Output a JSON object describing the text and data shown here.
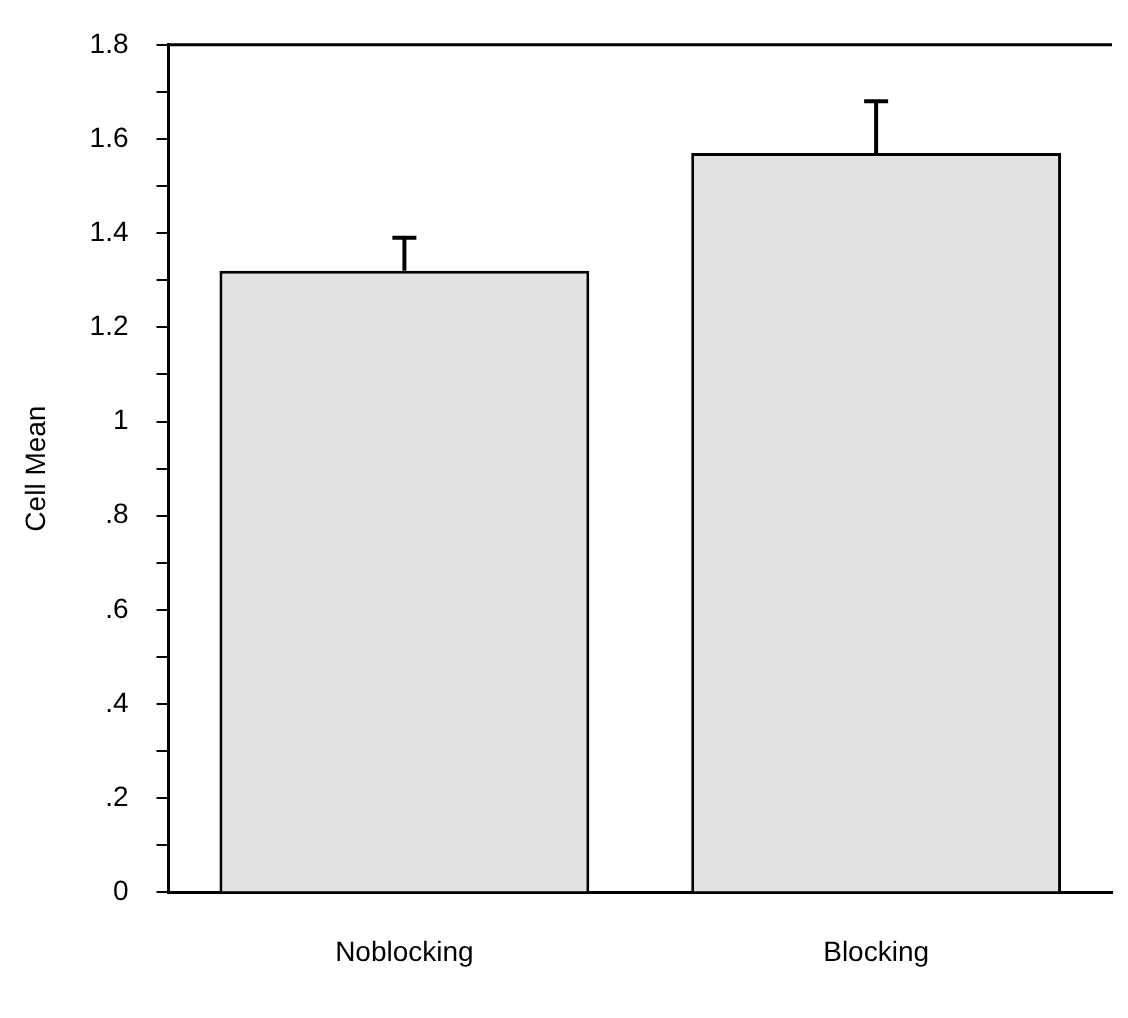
{
  "chart_data": {
    "type": "bar",
    "ylabel": "Cell Mean",
    "categories": [
      "Noblocking",
      "Blocking"
    ],
    "values": [
      1.32,
      1.57
    ],
    "color": "#e2e2e2",
    "errors": [
      [
        1.32,
        1.39
      ],
      [
        1.57,
        1.68
      ]
    ],
    "ylim": [
      0,
      1.8
    ],
    "yticks": [
      0,
      {
        "value": 0.1,
        "label": null
      },
      {
        "value": 0.2,
        "label": ".2"
      },
      {
        "value": 0.3,
        "label": null
      },
      {
        "value": 0.4,
        "label": ".4"
      },
      {
        "value": 0.5,
        "label": null
      },
      {
        "value": 0.6,
        "label": ".6"
      },
      {
        "value": 0.7,
        "label": null
      },
      {
        "value": 0.8,
        "label": ".8"
      },
      {
        "value": 0.9,
        "label": null
      },
      1,
      {
        "value": 1.1,
        "label": null
      },
      1.2,
      {
        "value": 1.3,
        "label": null
      },
      1.4,
      {
        "value": 1.5,
        "label": null
      },
      1.6,
      {
        "value": 1.7,
        "label": null
      },
      1.8
    ],
    "grid": false,
    "legend": false
  }
}
